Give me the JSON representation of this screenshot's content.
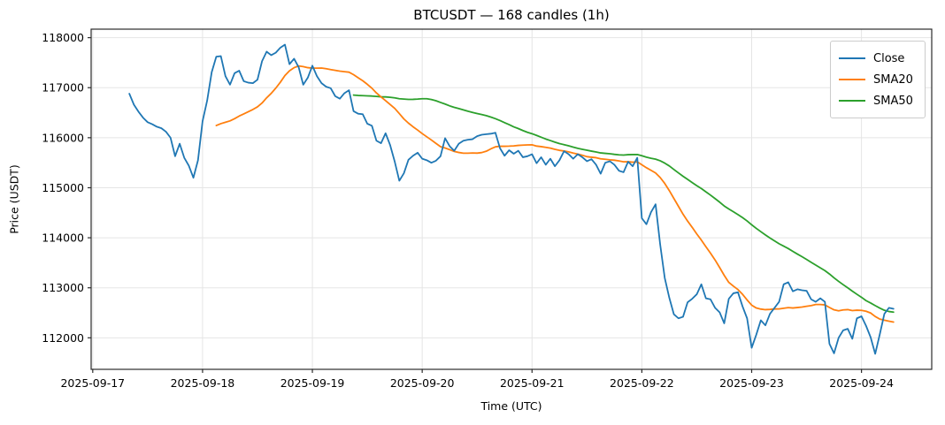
{
  "chart_data": {
    "type": "line",
    "title": "BTCUSDT — 168 candles (1h)",
    "xlabel": "Time (UTC)",
    "ylabel": "Price (USDT)",
    "interval": "1h",
    "num_candles": 168,
    "first_candle_utc": "2025-09-17 08:00",
    "last_candle_utc": "2025-09-24 07:00",
    "grid": true,
    "ylim": [
      111370,
      118170
    ],
    "xlim_hours": [
      -8.35,
      175.35
    ],
    "y_ticks": [
      112000,
      113000,
      114000,
      115000,
      116000,
      117000,
      118000
    ],
    "x_ticks": [
      {
        "label": "2025-09-17",
        "hour": -8
      },
      {
        "label": "2025-09-18",
        "hour": 16
      },
      {
        "label": "2025-09-19",
        "hour": 40
      },
      {
        "label": "2025-09-20",
        "hour": 64
      },
      {
        "label": "2025-09-21",
        "hour": 88
      },
      {
        "label": "2025-09-22",
        "hour": 112
      },
      {
        "label": "2025-09-23",
        "hour": 136
      },
      {
        "label": "2025-09-24",
        "hour": 160
      }
    ],
    "legend": {
      "position": "upper right",
      "entries": [
        {
          "label": "Close",
          "color": "#1f77b4"
        },
        {
          "label": "SMA20",
          "color": "#ff7f0e"
        },
        {
          "label": "SMA50",
          "color": "#2ca02c"
        }
      ]
    },
    "series": [
      {
        "name": "Close",
        "color": "#1f77b4",
        "kind": "raw"
      },
      {
        "name": "SMA20",
        "color": "#ff7f0e",
        "kind": "rolling_mean",
        "window": 20
      },
      {
        "name": "SMA50",
        "color": "#2ca02c",
        "kind": "rolling_mean",
        "window": 50
      }
    ],
    "close": [
      116880,
      116660,
      116520,
      116400,
      116310,
      116270,
      116220,
      116190,
      116120,
      116000,
      115630,
      115880,
      115600,
      115440,
      115200,
      115550,
      116330,
      116740,
      117310,
      117620,
      117630,
      117230,
      117060,
      117290,
      117340,
      117130,
      117100,
      117090,
      117160,
      117530,
      117720,
      117650,
      117700,
      117800,
      117860,
      117470,
      117580,
      117410,
      117060,
      117200,
      117440,
      117230,
      117090,
      117020,
      116990,
      116830,
      116780,
      116890,
      116950,
      116530,
      116480,
      116470,
      116280,
      116240,
      115940,
      115890,
      116090,
      115850,
      115520,
      115140,
      115290,
      115560,
      115640,
      115700,
      115580,
      115550,
      115500,
      115540,
      115630,
      115990,
      115830,
      115740,
      115880,
      115940,
      115960,
      115970,
      116030,
      116060,
      116070,
      116080,
      116100,
      115790,
      115640,
      115750,
      115680,
      115740,
      115610,
      115630,
      115670,
      115490,
      115610,
      115460,
      115580,
      115430,
      115550,
      115730,
      115670,
      115580,
      115670,
      115610,
      115530,
      115570,
      115460,
      115280,
      115500,
      115530,
      115460,
      115340,
      115310,
      115520,
      115430,
      115600,
      114390,
      114270,
      114510,
      114670,
      113870,
      113200,
      112800,
      112470,
      112390,
      112420,
      112710,
      112780,
      112870,
      113070,
      112790,
      112770,
      112600,
      112510,
      112290,
      112780,
      112890,
      112910,
      112630,
      112390,
      111800,
      112060,
      112350,
      112250,
      112480,
      112600,
      112720,
      113070,
      113110,
      112930,
      112970,
      112950,
      112940,
      112770,
      112720,
      112790,
      112720,
      111880,
      111690,
      112000,
      112150,
      112180,
      111980,
      112390,
      112430,
      112240,
      112010,
      111680,
      112070,
      112480,
      112600,
      112580
    ],
    "colors": {
      "grid": "#e5e5e5",
      "spine": "#2b2b2b",
      "tick_label": "#000000",
      "background": "#ffffff"
    }
  }
}
